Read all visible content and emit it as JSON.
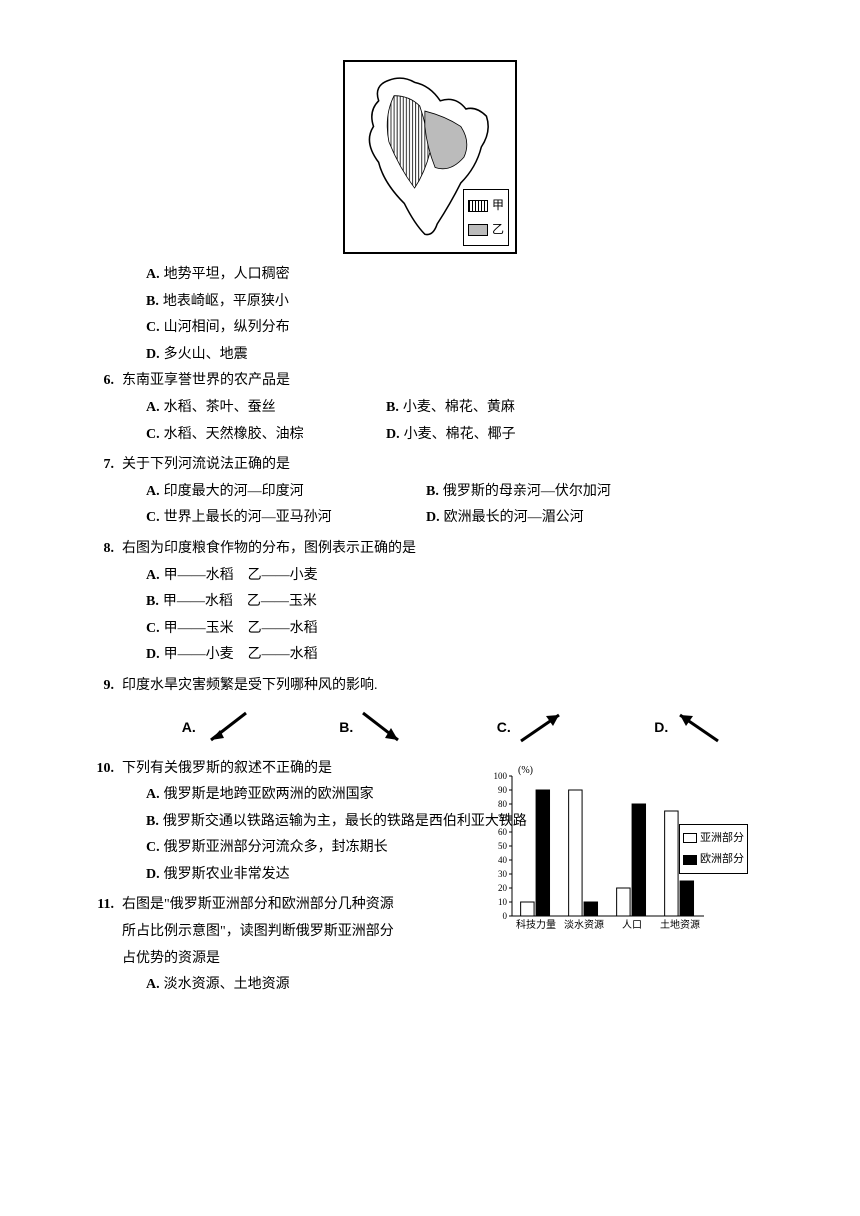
{
  "map": {
    "legend": {
      "a": "甲",
      "b": "乙"
    }
  },
  "preOptions": {
    "A": "地势平坦，人口稠密",
    "B": "地表崎岖，平原狭小",
    "C": "山河相间，纵列分布",
    "D": "多火山、地震"
  },
  "q6": {
    "num": "6.",
    "text": "东南亚享誉世界的农产品是",
    "A": "水稻、茶叶、蚕丝",
    "B": "小麦、棉花、黄麻",
    "C": "水稻、天然橡胶、油棕",
    "D": "小麦、棉花、椰子"
  },
  "q7": {
    "num": "7.",
    "text": "关于下列河流说法正确的是",
    "A": "印度最大的河—印度河",
    "B": "俄罗斯的母亲河—伏尔加河",
    "C": "世界上最长的河—亚马孙河",
    "D": "欧洲最长的河—湄公河"
  },
  "q8": {
    "num": "8.",
    "text": "右图为印度粮食作物的分布，图例表示正确的是",
    "A": "甲——水稻　乙——小麦",
    "B": "甲——水稻　乙——玉米",
    "C": "甲——玉米　乙——水稻",
    "D": "甲——小麦　乙——水稻"
  },
  "q9": {
    "num": "9.",
    "text": "印度水旱灾害频繁是受下列哪种风的影响.",
    "labels": {
      "A": "A.",
      "B": "B.",
      "C": "C.",
      "D": "D."
    }
  },
  "q10": {
    "num": "10.",
    "text": "下列有关俄罗斯的叙述不正确的是",
    "A": "俄罗斯是地跨亚欧两洲的欧洲国家",
    "B": "俄罗斯交通以铁路运输为主，最长的铁路是西伯利亚大铁路",
    "C": "俄罗斯亚洲部分河流众多，封冻期长",
    "D": "俄罗斯农业非常发达"
  },
  "q11": {
    "num": "11.",
    "text1": "右图是\"俄罗斯亚洲部分和欧洲部分几种资源",
    "text2": "所占比例示意图\"，读图判断俄罗斯亚洲部分",
    "text3": "占优势的资源是",
    "A": "淡水资源、土地资源"
  },
  "chart": {
    "ylabel": "(%)",
    "ymax": 100,
    "ytick_step": 10,
    "categories": [
      "科技力量",
      "淡水资源",
      "人口",
      "土地资源"
    ],
    "asia_values": [
      10,
      90,
      20,
      75
    ],
    "europe_values": [
      90,
      10,
      80,
      25
    ],
    "asia_label": "亚洲部分",
    "europe_label": "欧洲部分",
    "bar_fill_asia": "#ffffff",
    "bar_fill_europe": "#000000",
    "axis_color": "#000000",
    "label_fontsize": 10
  }
}
